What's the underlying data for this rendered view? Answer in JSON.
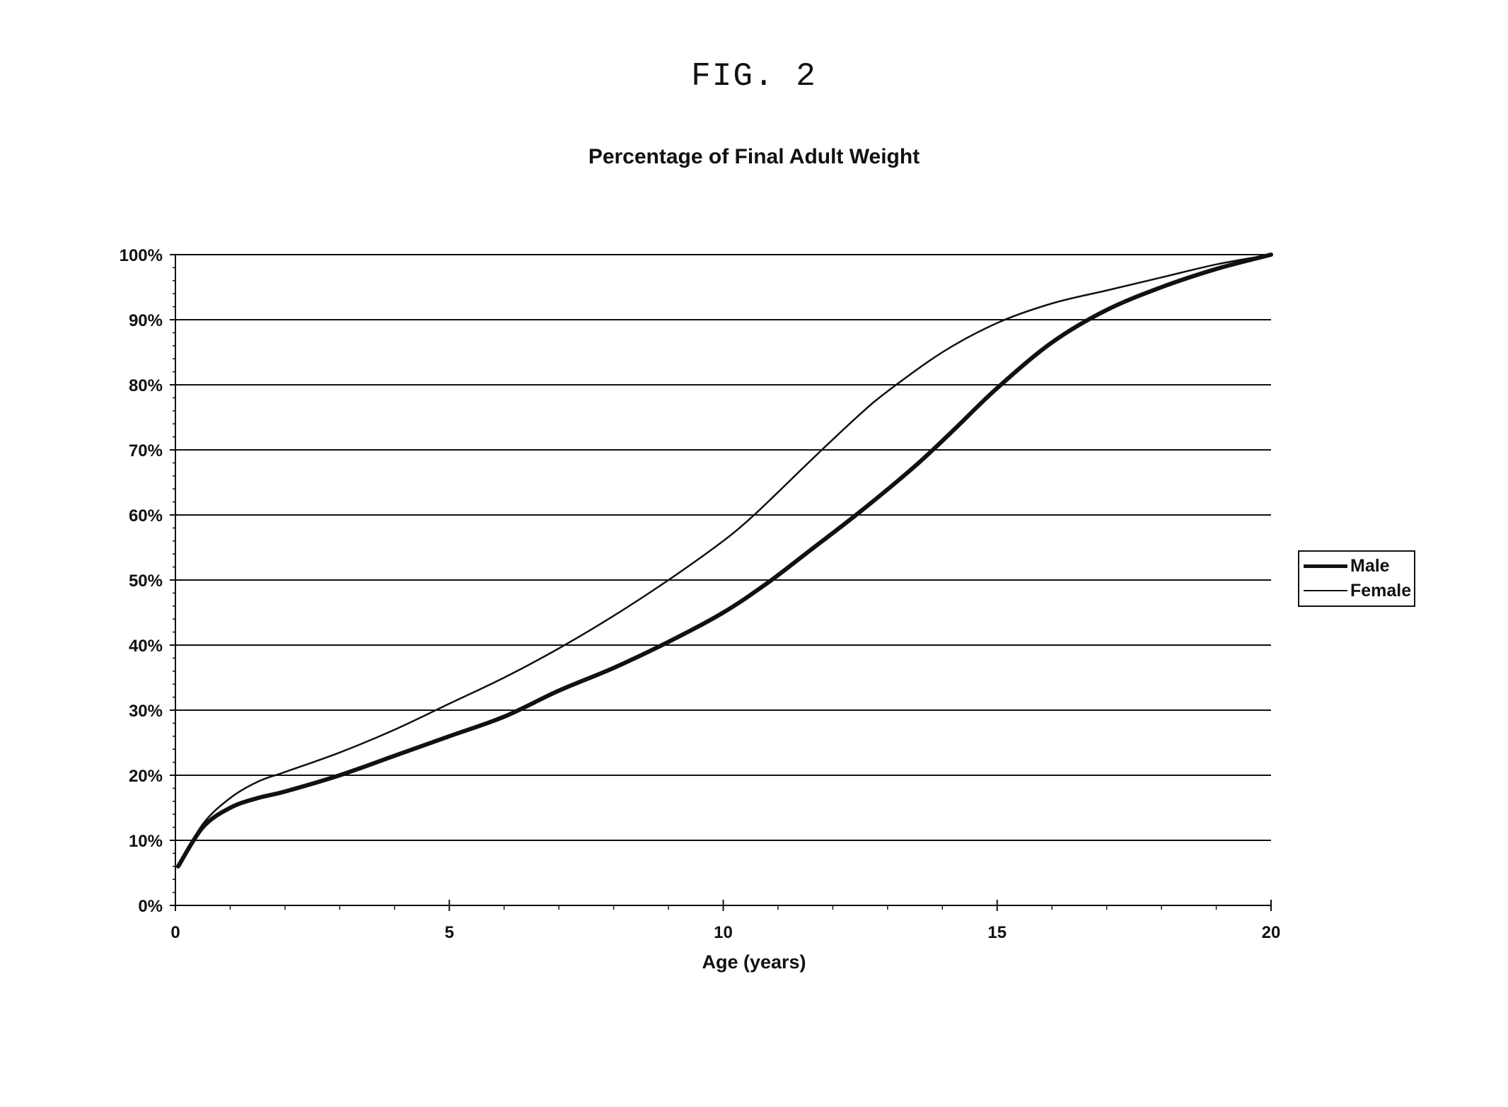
{
  "figure_label": "FIG. 2",
  "chart_data": {
    "type": "line",
    "title": "Percentage of Final Adult Weight",
    "xlabel": "Age (years)",
    "ylabel": "",
    "xlim": [
      0,
      20
    ],
    "ylim": [
      0,
      100
    ],
    "x_ticks": [
      "0",
      "5",
      "10",
      "15",
      "20"
    ],
    "y_ticks": [
      "0%",
      "10%",
      "20%",
      "30%",
      "40%",
      "50%",
      "60%",
      "70%",
      "80%",
      "90%",
      "100%"
    ],
    "grid": "horizontal",
    "legend_position": "right",
    "series": [
      {
        "name": "Male",
        "line": "thick",
        "x": [
          0.05,
          0.5,
          1,
          1.5,
          2,
          3,
          4,
          5,
          6,
          7,
          8,
          9,
          10,
          10.8,
          11.5,
          12.5,
          13.5,
          14.2,
          15,
          16,
          17,
          18,
          19,
          20
        ],
        "y": [
          6,
          12,
          15,
          16.5,
          17.5,
          20,
          23,
          26,
          29,
          33,
          36.5,
          40.5,
          45,
          49.5,
          54,
          60.5,
          67.5,
          73,
          79.5,
          86.5,
          91.5,
          95,
          97.8,
          100
        ]
      },
      {
        "name": "Female",
        "line": "thin",
        "x": [
          0.05,
          0.5,
          1,
          1.5,
          2,
          3,
          4,
          5,
          6,
          7,
          8,
          9,
          10,
          10.5,
          11,
          11.8,
          12.5,
          13,
          14,
          15,
          16,
          17,
          18,
          19,
          20
        ],
        "y": [
          6,
          12.5,
          16.5,
          19,
          20.5,
          23.5,
          27,
          31,
          35,
          39.5,
          44.5,
          50,
          56,
          59.5,
          63.5,
          70,
          75.5,
          79,
          85,
          89.5,
          92.5,
          94.5,
          96.5,
          98.5,
          100
        ]
      }
    ]
  }
}
